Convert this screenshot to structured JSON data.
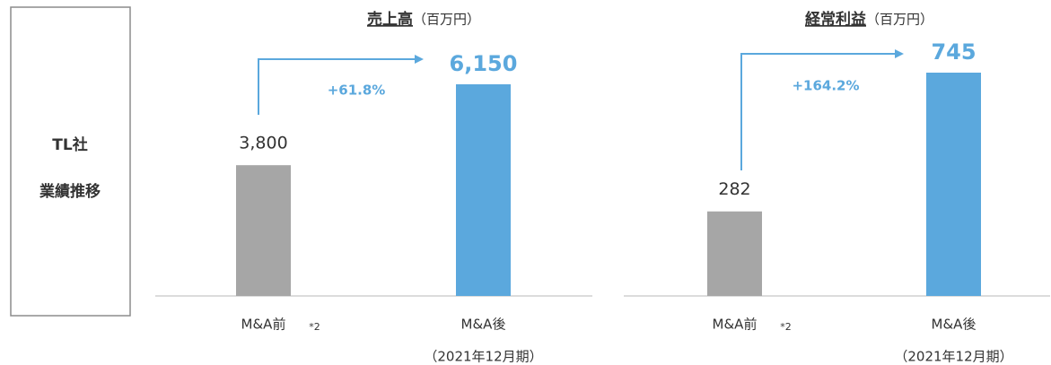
{
  "label": [
    "TL社",
    "業績推移"
  ],
  "chart_data": [
    {
      "type": "bar",
      "title": "売上高",
      "unit": "（百万円）",
      "categories": [
        "M&A前",
        "M&A後"
      ],
      "category_notes": [
        "*2",
        "（2021年12月期）"
      ],
      "values": [
        3800,
        6150
      ],
      "value_labels": [
        "3,800",
        "6,150"
      ],
      "colors": [
        "#a6a6a6",
        "#5ba8dd"
      ],
      "annotation": "+61.8%"
    },
    {
      "type": "bar",
      "title": "経常利益",
      "unit": "（百万円）",
      "categories": [
        "M&A前",
        "M&A後"
      ],
      "category_notes": [
        "*2",
        "（2021年12月期）"
      ],
      "values": [
        282,
        745
      ],
      "value_labels": [
        "282",
        "745"
      ],
      "colors": [
        "#a6a6a6",
        "#5ba8dd"
      ],
      "annotation": "+164.2%"
    }
  ]
}
